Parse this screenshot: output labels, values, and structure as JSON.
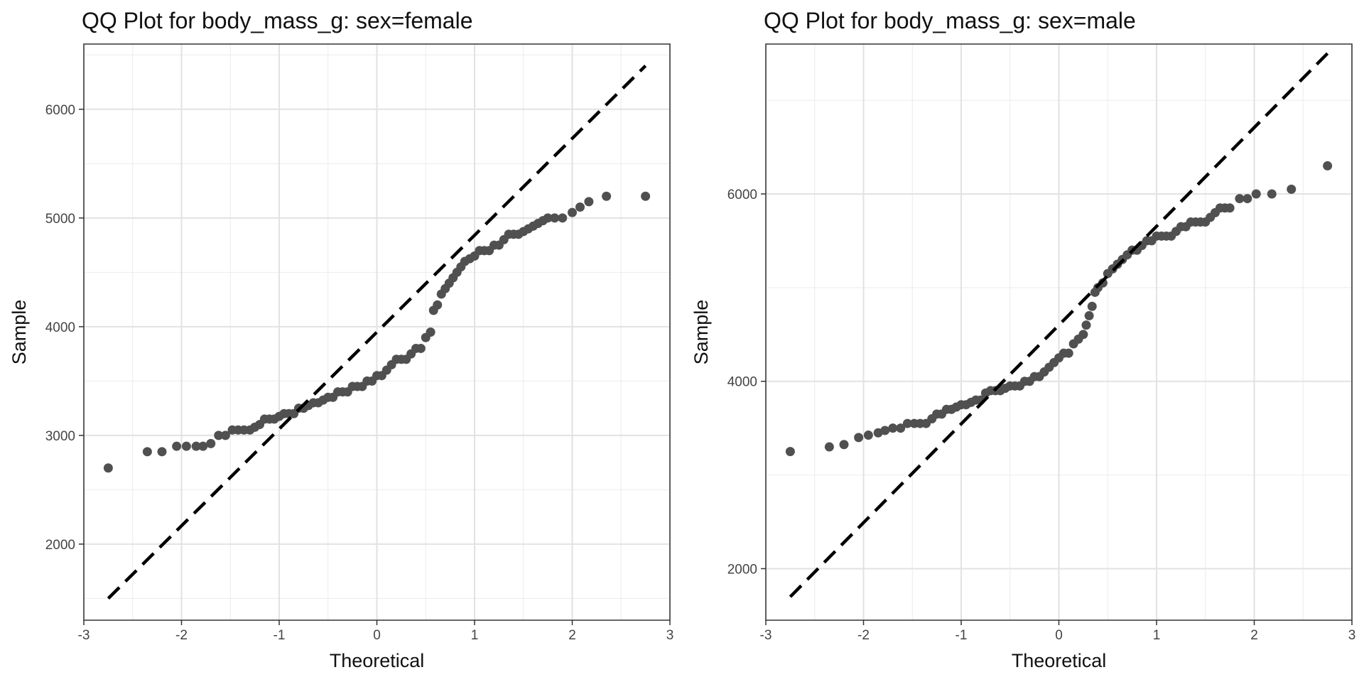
{
  "chart_data": [
    {
      "type": "scatter",
      "title": "QQ Plot for body_mass_g: sex=female",
      "xlabel": "Theoretical",
      "ylabel": "Sample",
      "xlim": [
        -3,
        3
      ],
      "ylim": [
        1300,
        6600
      ],
      "xticks": [
        -3,
        -2,
        -1,
        0,
        1,
        2,
        3
      ],
      "yticks": [
        2000,
        3000,
        4000,
        5000,
        6000
      ],
      "xtick_labels": [
        "-3",
        "-2",
        "-1",
        "0",
        "1",
        "2",
        "3"
      ],
      "ytick_labels": [
        "2000",
        "3000",
        "4000",
        "5000",
        "6000"
      ],
      "grid": true,
      "point_color": "#505050",
      "reference_line": {
        "x": [
          -2.75,
          2.75
        ],
        "y": [
          1500,
          6400
        ],
        "style": "dashed",
        "color": "#000000"
      },
      "points": [
        [
          -2.75,
          2700
        ],
        [
          -2.35,
          2850
        ],
        [
          -2.2,
          2850
        ],
        [
          -2.05,
          2900
        ],
        [
          -1.95,
          2900
        ],
        [
          -1.85,
          2900
        ],
        [
          -1.78,
          2900
        ],
        [
          -1.7,
          2925
        ],
        [
          -1.62,
          3000
        ],
        [
          -1.55,
          3000
        ],
        [
          -1.48,
          3050
        ],
        [
          -1.42,
          3050
        ],
        [
          -1.36,
          3050
        ],
        [
          -1.3,
          3050
        ],
        [
          -1.25,
          3075
        ],
        [
          -1.2,
          3100
        ],
        [
          -1.15,
          3150
        ],
        [
          -1.1,
          3150
        ],
        [
          -1.05,
          3150
        ],
        [
          -1.0,
          3175
        ],
        [
          -0.95,
          3200
        ],
        [
          -0.9,
          3200
        ],
        [
          -0.85,
          3200
        ],
        [
          -0.8,
          3250
        ],
        [
          -0.75,
          3250
        ],
        [
          -0.7,
          3275
        ],
        [
          -0.65,
          3300
        ],
        [
          -0.6,
          3300
        ],
        [
          -0.55,
          3325
        ],
        [
          -0.5,
          3350
        ],
        [
          -0.45,
          3350
        ],
        [
          -0.4,
          3400
        ],
        [
          -0.35,
          3400
        ],
        [
          -0.3,
          3400
        ],
        [
          -0.25,
          3450
        ],
        [
          -0.2,
          3450
        ],
        [
          -0.15,
          3450
        ],
        [
          -0.1,
          3500
        ],
        [
          -0.05,
          3500
        ],
        [
          0.0,
          3550
        ],
        [
          0.05,
          3550
        ],
        [
          0.1,
          3600
        ],
        [
          0.15,
          3650
        ],
        [
          0.2,
          3700
        ],
        [
          0.25,
          3700
        ],
        [
          0.3,
          3700
        ],
        [
          0.35,
          3750
        ],
        [
          0.4,
          3800
        ],
        [
          0.45,
          3800
        ],
        [
          0.5,
          3900
        ],
        [
          0.55,
          3950
        ],
        [
          0.58,
          4150
        ],
        [
          0.62,
          4200
        ],
        [
          0.66,
          4300
        ],
        [
          0.7,
          4350
        ],
        [
          0.74,
          4400
        ],
        [
          0.78,
          4450
        ],
        [
          0.82,
          4500
        ],
        [
          0.86,
          4550
        ],
        [
          0.9,
          4600
        ],
        [
          0.95,
          4625
        ],
        [
          1.0,
          4650
        ],
        [
          1.05,
          4700
        ],
        [
          1.1,
          4700
        ],
        [
          1.15,
          4700
        ],
        [
          1.2,
          4750
        ],
        [
          1.25,
          4750
        ],
        [
          1.3,
          4800
        ],
        [
          1.35,
          4850
        ],
        [
          1.4,
          4850
        ],
        [
          1.45,
          4850
        ],
        [
          1.5,
          4875
        ],
        [
          1.55,
          4900
        ],
        [
          1.6,
          4925
        ],
        [
          1.65,
          4950
        ],
        [
          1.7,
          4975
        ],
        [
          1.75,
          5000
        ],
        [
          1.82,
          5000
        ],
        [
          1.9,
          5000
        ],
        [
          2.0,
          5050
        ],
        [
          2.08,
          5100
        ],
        [
          2.17,
          5150
        ],
        [
          2.35,
          5200
        ],
        [
          2.75,
          5200
        ]
      ]
    },
    {
      "type": "scatter",
      "title": "QQ Plot for body_mass_g: sex=male",
      "xlabel": "Theoretical",
      "ylabel": "Sample",
      "xlim": [
        -3,
        3
      ],
      "ylim": [
        1450,
        7600
      ],
      "xticks": [
        -3,
        -2,
        -1,
        0,
        1,
        2,
        3
      ],
      "yticks": [
        2000,
        4000,
        6000
      ],
      "xtick_labels": [
        "-3",
        "-2",
        "-1",
        "0",
        "1",
        "2",
        "3"
      ],
      "ytick_labels": [
        "2000",
        "4000",
        "6000"
      ],
      "grid": true,
      "point_color": "#505050",
      "reference_line": {
        "x": [
          -2.75,
          2.75
        ],
        "y": [
          1700,
          7500
        ],
        "style": "dashed",
        "color": "#000000"
      },
      "points": [
        [
          -2.75,
          3250
        ],
        [
          -2.35,
          3300
        ],
        [
          -2.2,
          3325
        ],
        [
          -2.05,
          3400
        ],
        [
          -1.95,
          3425
        ],
        [
          -1.85,
          3450
        ],
        [
          -1.78,
          3475
        ],
        [
          -1.7,
          3500
        ],
        [
          -1.62,
          3500
        ],
        [
          -1.55,
          3550
        ],
        [
          -1.48,
          3550
        ],
        [
          -1.42,
          3550
        ],
        [
          -1.36,
          3550
        ],
        [
          -1.3,
          3600
        ],
        [
          -1.25,
          3650
        ],
        [
          -1.2,
          3650
        ],
        [
          -1.15,
          3700
        ],
        [
          -1.1,
          3700
        ],
        [
          -1.05,
          3725
        ],
        [
          -1.0,
          3750
        ],
        [
          -0.95,
          3750
        ],
        [
          -0.9,
          3775
        ],
        [
          -0.85,
          3800
        ],
        [
          -0.8,
          3800
        ],
        [
          -0.75,
          3875
        ],
        [
          -0.7,
          3900
        ],
        [
          -0.65,
          3900
        ],
        [
          -0.6,
          3900
        ],
        [
          -0.55,
          3925
        ],
        [
          -0.5,
          3950
        ],
        [
          -0.45,
          3950
        ],
        [
          -0.4,
          3950
        ],
        [
          -0.35,
          4000
        ],
        [
          -0.3,
          4000
        ],
        [
          -0.25,
          4050
        ],
        [
          -0.2,
          4050
        ],
        [
          -0.15,
          4100
        ],
        [
          -0.1,
          4150
        ],
        [
          -0.05,
          4200
        ],
        [
          0.0,
          4250
        ],
        [
          0.05,
          4300
        ],
        [
          0.1,
          4300
        ],
        [
          0.15,
          4400
        ],
        [
          0.2,
          4450
        ],
        [
          0.25,
          4500
        ],
        [
          0.28,
          4600
        ],
        [
          0.31,
          4700
        ],
        [
          0.34,
          4800
        ],
        [
          0.37,
          4950
        ],
        [
          0.4,
          5000
        ],
        [
          0.45,
          5050
        ],
        [
          0.5,
          5150
        ],
        [
          0.55,
          5200
        ],
        [
          0.6,
          5250
        ],
        [
          0.65,
          5300
        ],
        [
          0.7,
          5350
        ],
        [
          0.75,
          5400
        ],
        [
          0.8,
          5400
        ],
        [
          0.85,
          5450
        ],
        [
          0.9,
          5500
        ],
        [
          0.95,
          5500
        ],
        [
          1.0,
          5550
        ],
        [
          1.05,
          5550
        ],
        [
          1.1,
          5550
        ],
        [
          1.15,
          5550
        ],
        [
          1.2,
          5600
        ],
        [
          1.25,
          5650
        ],
        [
          1.3,
          5650
        ],
        [
          1.35,
          5700
        ],
        [
          1.4,
          5700
        ],
        [
          1.45,
          5700
        ],
        [
          1.5,
          5700
        ],
        [
          1.55,
          5750
        ],
        [
          1.6,
          5800
        ],
        [
          1.65,
          5850
        ],
        [
          1.7,
          5850
        ],
        [
          1.75,
          5850
        ],
        [
          1.85,
          5950
        ],
        [
          1.93,
          5950
        ],
        [
          2.02,
          6000
        ],
        [
          2.18,
          6000
        ],
        [
          2.38,
          6050
        ],
        [
          2.75,
          6300
        ]
      ]
    }
  ]
}
